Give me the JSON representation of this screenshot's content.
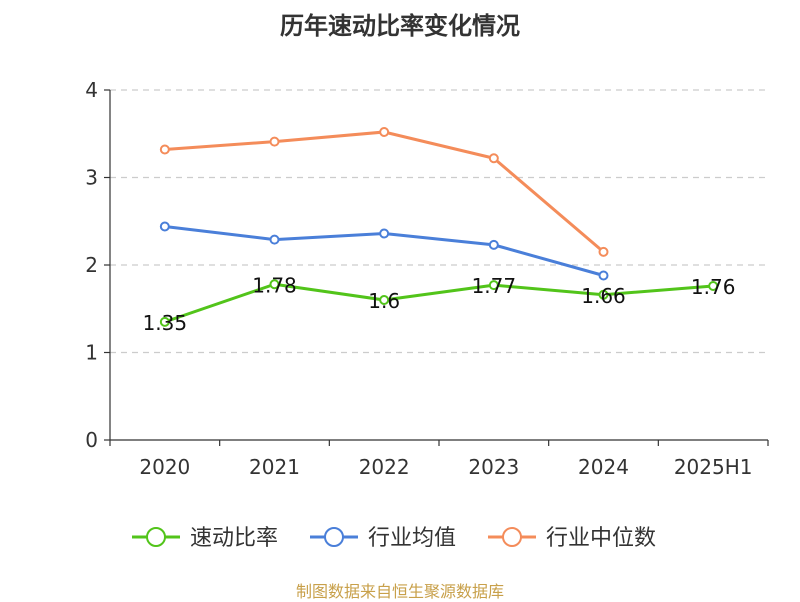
{
  "chart_data": {
    "type": "line",
    "title": "历年速动比率变化情况",
    "categories": [
      "2020",
      "2021",
      "2022",
      "2023",
      "2024",
      "2025H1"
    ],
    "ylim": [
      0,
      4
    ],
    "yticks": [
      "0",
      "1",
      "2",
      "3",
      "4"
    ],
    "grid": true,
    "legend_position": "bottom",
    "series": [
      {
        "name": "速动比率",
        "color": "#52c41a",
        "values": [
          1.35,
          1.78,
          1.6,
          1.77,
          1.66,
          1.76
        ],
        "labels": [
          "1.35",
          "1.78",
          "1.6",
          "1.77",
          "1.66",
          "1.76"
        ]
      },
      {
        "name": "行业均值",
        "color": "#4a7fd9",
        "values": [
          2.44,
          2.29,
          2.36,
          2.23,
          1.88,
          null
        ]
      },
      {
        "name": "行业中位数",
        "color": "#f48c5a",
        "values": [
          3.32,
          3.41,
          3.52,
          3.22,
          2.15,
          null
        ]
      }
    ]
  },
  "source_note": "制图数据来自恒生聚源数据库"
}
